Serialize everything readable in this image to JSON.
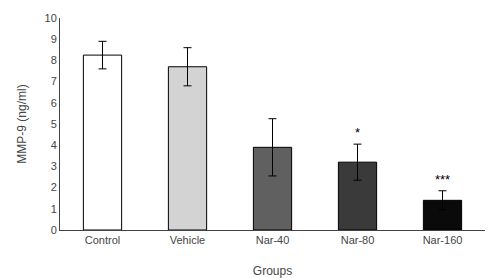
{
  "chart_data": {
    "type": "bar",
    "categories": [
      "Control",
      "Vehicle",
      "Nar-40",
      "Nar-80",
      "Nar-160"
    ],
    "values": [
      8.25,
      7.7,
      3.9,
      3.2,
      1.4
    ],
    "errors": [
      0.65,
      0.9,
      1.35,
      0.85,
      0.45
    ],
    "colors": [
      "#ffffff",
      "#d3d3d3",
      "#606060",
      "#3a3a3a",
      "#0a0a0a"
    ],
    "annotations": [
      {
        "category": "Nar-80",
        "text": "*"
      },
      {
        "category": "Nar-160",
        "text": "***"
      }
    ],
    "xlabel": "Groups",
    "ylabel": "MMP-9 (ng/ml)",
    "ylim": [
      0,
      10
    ],
    "yticks": [
      0,
      1,
      2,
      3,
      4,
      5,
      6,
      7,
      8,
      9,
      10
    ],
    "grid": false
  }
}
